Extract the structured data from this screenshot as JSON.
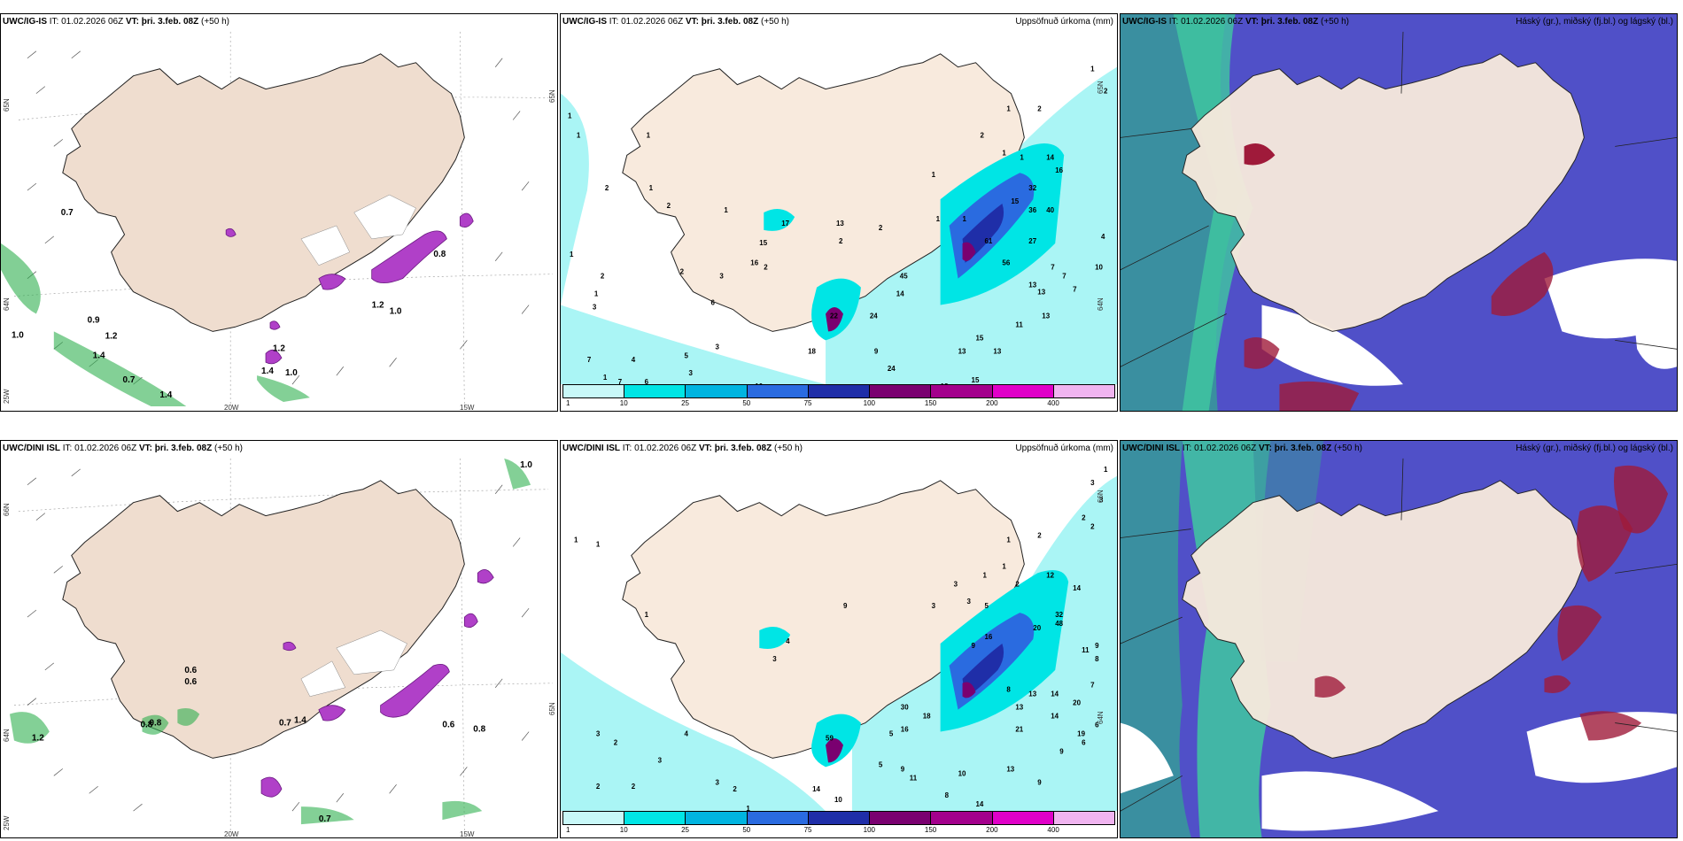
{
  "colors": {
    "land": "#f8eadd",
    "sea": "#ffffff",
    "precip_light": "#aaf5f5",
    "precip_med": "#00e5e5",
    "precip_heavy": "#0f3fd0",
    "precip_extreme": "#7a0070",
    "cloud_high": "#9f1a3a",
    "cloud_mid": "#5050c8",
    "cloud_low": "#3a8fa0",
    "cloud_green": "#40c8a0",
    "snow_magenta": "#b040c8",
    "wind_green": "#30b050"
  },
  "panels": {
    "top_left": {
      "model": "UWC/IG-IS",
      "it_label": "IT:",
      "it_value": "01.02.2026 06Z",
      "vt_label": "VT:",
      "vt_value": "þri. 3.feb. 08Z",
      "lead": "(+50 h)",
      "lat_labels": [
        "65N",
        "64N",
        "65N"
      ],
      "lon_labels": [
        "20W",
        "15W",
        "25W"
      ],
      "values": [
        "0.7",
        "0.9",
        "1.0",
        "1.2",
        "1.4",
        "0.7",
        "1.4",
        "1.4",
        "1.2",
        "1.0",
        "1.2",
        "0.8",
        "1.0"
      ]
    },
    "top_mid": {
      "model": "UWC/IG-IS",
      "it_label": "IT:",
      "it_value": "01.02.2026 06Z",
      "vt_label": "VT:",
      "vt_value": "þri. 3.feb. 08Z",
      "lead": "(+50 h)",
      "right_title": "Uppsöfnuð úrkoma (mm)",
      "lat_labels": [
        "65N",
        "64N"
      ],
      "values": [
        "1",
        "1",
        "1",
        "2",
        "2",
        "1",
        "3",
        "1",
        "7",
        "4",
        "5",
        "7",
        "6",
        "3",
        "3",
        "10",
        "19",
        "18",
        "15",
        "11",
        "24",
        "13",
        "15",
        "13",
        "9",
        "24",
        "22",
        "18",
        "14",
        "45",
        "13",
        "7",
        "7",
        "7",
        "10",
        "4",
        "13",
        "11",
        "13",
        "15",
        "36",
        "40",
        "27",
        "56",
        "61",
        "32",
        "14",
        "16",
        "1",
        "2",
        "2",
        "1",
        "1",
        "1",
        "2",
        "1",
        "1",
        "2",
        "2",
        "1",
        "1",
        "17",
        "15",
        "13",
        "16",
        "2",
        "2",
        "3",
        "6",
        "2",
        "1",
        "1"
      ],
      "colorbar_ticks": [
        "1",
        "10",
        "25",
        "50",
        "75",
        "100",
        "150",
        "200",
        "400"
      ]
    },
    "top_right": {
      "model": "UWC/IG-IS",
      "it_label": "IT:",
      "it_value": "01.02.2026 06Z",
      "vt_label": "VT:",
      "vt_value": "þri. 3.feb. 08Z",
      "lead": "(+50 h)",
      "right_title": "Háský (gr.), miðský (fj.bl.) og lágský (bl.)"
    },
    "bottom_left": {
      "model": "UWC/DINI ISL",
      "it_label": "IT:",
      "it_value": "01.02.2026 06Z",
      "vt_label": "VT:",
      "vt_value": "þri. 3.feb. 08Z",
      "lead": "(+50 h)",
      "lat_labels": [
        "66N",
        "64N",
        "65N"
      ],
      "lon_labels": [
        "20W",
        "15W",
        "25W"
      ],
      "values": [
        "0.6",
        "0.6",
        "0.8",
        "0.8",
        "1.2",
        "0.7",
        "1.4",
        "0.6",
        "0.8",
        "0.7",
        "1.0"
      ]
    },
    "bottom_mid": {
      "model": "UWC/DINI ISL",
      "it_label": "IT:",
      "it_value": "01.02.2026 06Z",
      "vt_label": "VT:",
      "vt_value": "þri. 3.feb. 08Z",
      "lead": "(+50 h)",
      "right_title": "Uppsöfnuð úrkoma (mm)",
      "lat_labels": [
        "66N",
        "64N"
      ],
      "values": [
        "1",
        "1",
        "3",
        "2",
        "2",
        "2",
        "3",
        "4",
        "1",
        "14",
        "2",
        "3",
        "5",
        "9",
        "11",
        "10",
        "8",
        "14",
        "10",
        "13",
        "9",
        "5",
        "16",
        "18",
        "59",
        "30",
        "21",
        "13",
        "14",
        "20",
        "13",
        "14",
        "9",
        "19",
        "6",
        "6",
        "7",
        "8",
        "9",
        "11",
        "8",
        "20",
        "48",
        "32",
        "12",
        "14",
        "3",
        "3",
        "2",
        "2",
        "2",
        "1",
        "1",
        "1",
        "2",
        "3",
        "3",
        "5",
        "9",
        "16",
        "3",
        "9",
        "1",
        "1",
        "3",
        "4"
      ],
      "colorbar_ticks": [
        "1",
        "10",
        "25",
        "50",
        "75",
        "100",
        "150",
        "200",
        "400"
      ]
    },
    "bottom_right": {
      "model": "UWC/DINI ISL",
      "it_label": "IT:",
      "it_value": "01.02.2026 06Z",
      "vt_label": "VT:",
      "vt_value": "þri. 3.feb. 08Z",
      "lead": "(+50 h)",
      "right_title": "Háský (gr.), miðský (fj.bl.) og lágský (bl.)"
    }
  },
  "colorbar_colors": [
    "#c8f8f8",
    "#00e5e5",
    "#00b4e0",
    "#2a6be0",
    "#1f2ea8",
    "#7a0070",
    "#a3008c",
    "#e000c8",
    "#f0b4f0"
  ]
}
